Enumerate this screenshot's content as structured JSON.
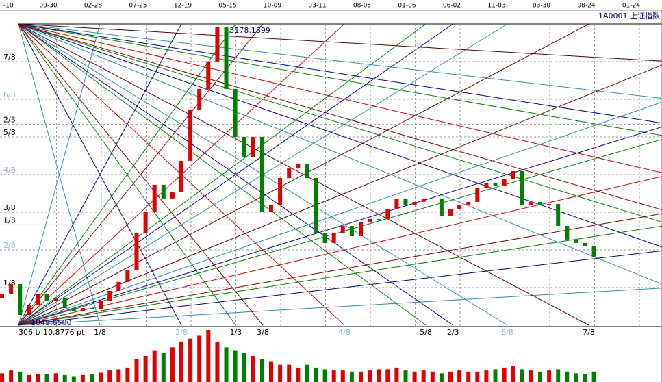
{
  "chart_data": {
    "type": "candlestick",
    "symbol": "1A0001 上证指数",
    "categories": [
      "-10",
      "09-30",
      "02-28",
      "07-25",
      "12-19",
      "05-15",
      "10-09",
      "03-11",
      "08-05",
      "01-06",
      "06-02",
      "11-03",
      "03-30",
      "08-24",
      "01-24"
    ],
    "high": 5178.1899,
    "low": {
      "value": 1849.65,
      "label": "1849.6500"
    },
    "info": "306 t/ 10.8776 pt",
    "levels": [
      {
        "value": 0.125,
        "label": "1/8",
        "color": "#000000",
        "line": "#2a8fb0"
      },
      {
        "value": 0.25,
        "label": "2/8",
        "color": "#8fb4d9",
        "line": "#00008b"
      },
      {
        "value": 0.3333,
        "label": "1/3",
        "color": "#000000",
        "line": "#008000"
      },
      {
        "value": 0.375,
        "label": "3/8",
        "color": "#000000",
        "line": "#800000"
      },
      {
        "value": 0.5,
        "label": "4/8",
        "color": "#8fb4d9",
        "line": "#d00000"
      },
      {
        "value": 0.625,
        "label": "5/8",
        "color": "#000000",
        "line": "#008000"
      },
      {
        "value": 0.6667,
        "label": "2/3",
        "color": "#000000",
        "line": "#0000a0"
      },
      {
        "value": 0.75,
        "label": "6/8",
        "color": "#8fb4d9",
        "line": "#2a8fb0"
      },
      {
        "value": 0.875,
        "label": "7/8",
        "color": "#000000",
        "line": "#5a0000"
      }
    ],
    "open": [
      2150,
      2190,
      2304,
      1963,
      2077,
      2190,
      2115,
      2153,
      2039,
      2001,
      2039,
      2024,
      2115,
      2228,
      2327,
      2455,
      2871,
      3098,
      3401,
      3250,
      3325,
      3666,
      4233,
      4460,
      4763,
      5141,
      4460,
      3930,
      3703,
      3930,
      3098,
      3174,
      3476,
      3590,
      3628,
      3476,
      2871,
      2758,
      2871,
      2947,
      2833,
      2985,
      3023,
      3023,
      3136,
      3250,
      3174,
      3212,
      3250,
      3250,
      3060,
      3136,
      3174,
      3212,
      3363,
      3416,
      3386,
      3461,
      3552,
      3174,
      3212,
      3174,
      3189,
      2947,
      2796,
      2758,
      2720
    ],
    "close": [
      2190,
      2304,
      1963,
      2077,
      2190,
      2115,
      2153,
      2039,
      2001,
      2039,
      2024,
      2115,
      2228,
      2327,
      2455,
      2871,
      3098,
      3401,
      3250,
      3325,
      3666,
      4233,
      4460,
      4763,
      5141,
      4460,
      3930,
      3703,
      3930,
      3098,
      3174,
      3476,
      3590,
      3628,
      3476,
      2871,
      2758,
      2871,
      2947,
      2833,
      2985,
      3023,
      3023,
      3136,
      3250,
      3174,
      3212,
      3250,
      3250,
      3060,
      3136,
      3174,
      3212,
      3363,
      3416,
      3386,
      3461,
      3552,
      3174,
      3212,
      3174,
      3189,
      2947,
      2796,
      2758,
      2720,
      2607
    ],
    "volume": [
      15,
      20,
      18,
      12,
      14,
      13,
      15,
      12,
      10,
      12,
      14,
      16,
      20,
      22,
      25,
      40,
      45,
      55,
      50,
      60,
      70,
      75,
      80,
      90,
      70,
      60,
      55,
      50,
      45,
      40,
      35,
      30,
      30,
      25,
      30,
      25,
      22,
      20,
      20,
      18,
      18,
      20,
      22,
      22,
      25,
      20,
      18,
      20,
      18,
      15,
      18,
      20,
      18,
      18,
      20,
      22,
      25,
      28,
      22,
      20,
      18,
      20,
      22,
      18,
      15,
      14,
      18
    ],
    "up_color": "#e00000",
    "down_color": "#008000"
  }
}
